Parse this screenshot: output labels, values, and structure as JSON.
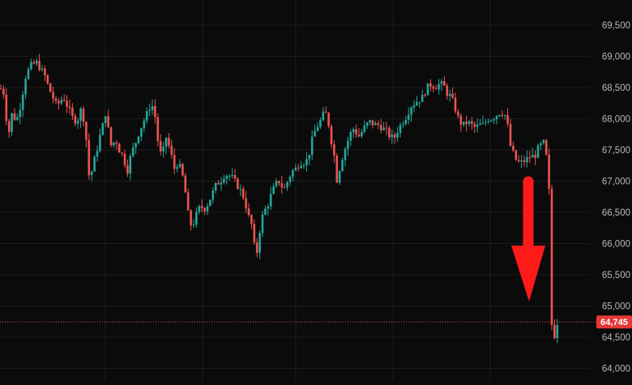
{
  "chart_data": {
    "type": "candlestick",
    "title": "",
    "xlabel": "",
    "ylabel": "",
    "ylim": [
      63800,
      69900
    ],
    "y_axis_position": "right",
    "grid": true,
    "y_ticks": [
      "64,000",
      "64,500",
      "65,000",
      "65,500",
      "66,000",
      "66,500",
      "67,000",
      "67,500",
      "68,000",
      "68,500",
      "69,000",
      "69,500"
    ],
    "current_price": 64745,
    "current_price_label": "64,745",
    "colors": {
      "background": "#0b0b0b",
      "grid": "#1e1e1e",
      "up": "#26a69a",
      "down": "#ef5350",
      "price_line": "#ef5350",
      "arrow": "#ff1a1a"
    },
    "annotation": {
      "type": "arrow",
      "direction": "down",
      "color": "#ff1a1a"
    },
    "path_points": [
      [
        0,
        68500
      ],
      [
        5,
        68400
      ],
      [
        10,
        67700
      ],
      [
        15,
        68100
      ],
      [
        20,
        67950
      ],
      [
        25,
        68200
      ],
      [
        32,
        68700
      ],
      [
        38,
        68850
      ],
      [
        45,
        68900
      ],
      [
        50,
        68800
      ],
      [
        55,
        68700
      ],
      [
        60,
        68500
      ],
      [
        65,
        68350
      ],
      [
        70,
        68200
      ],
      [
        78,
        68350
      ],
      [
        85,
        68150
      ],
      [
        90,
        68000
      ],
      [
        95,
        67950
      ],
      [
        100,
        68150
      ],
      [
        105,
        67900
      ],
      [
        108,
        67400
      ],
      [
        111,
        66900
      ],
      [
        114,
        67250
      ],
      [
        118,
        67400
      ],
      [
        123,
        67700
      ],
      [
        127,
        67900
      ],
      [
        130,
        68100
      ],
      [
        134,
        67800
      ],
      [
        138,
        67500
      ],
      [
        142,
        67700
      ],
      [
        147,
        67500
      ],
      [
        152,
        67400
      ],
      [
        157,
        67150
      ],
      [
        162,
        67450
      ],
      [
        167,
        67600
      ],
      [
        172,
        67800
      ],
      [
        177,
        67950
      ],
      [
        182,
        68100
      ],
      [
        187,
        68250
      ],
      [
        192,
        68000
      ],
      [
        196,
        67500
      ],
      [
        200,
        67400
      ],
      [
        205,
        67700
      ],
      [
        210,
        67500
      ],
      [
        215,
        67200
      ],
      [
        220,
        67300
      ],
      [
        225,
        67100
      ],
      [
        229,
        66800
      ],
      [
        233,
        66400
      ],
      [
        237,
        66250
      ],
      [
        242,
        66450
      ],
      [
        247,
        66600
      ],
      [
        252,
        66550
      ],
      [
        257,
        66650
      ],
      [
        262,
        66800
      ],
      [
        267,
        66950
      ],
      [
        272,
        67000
      ],
      [
        277,
        67100
      ],
      [
        282,
        67100
      ],
      [
        287,
        67050
      ],
      [
        292,
        66950
      ],
      [
        297,
        66850
      ],
      [
        302,
        66700
      ],
      [
        306,
        66450
      ],
      [
        310,
        66350
      ],
      [
        313,
        66000
      ],
      [
        317,
        65850
      ],
      [
        321,
        66250
      ],
      [
        325,
        66500
      ],
      [
        330,
        66600
      ],
      [
        335,
        66800
      ],
      [
        340,
        66950
      ],
      [
        345,
        67000
      ],
      [
        350,
        66850
      ],
      [
        355,
        67000
      ],
      [
        360,
        67150
      ],
      [
        365,
        67200
      ],
      [
        370,
        67300
      ],
      [
        375,
        67300
      ],
      [
        380,
        67350
      ],
      [
        385,
        67650
      ],
      [
        390,
        67850
      ],
      [
        395,
        67950
      ],
      [
        400,
        68100
      ],
      [
        404,
        68050
      ],
      [
        408,
        67700
      ],
      [
        412,
        67450
      ],
      [
        416,
        67000
      ],
      [
        420,
        67250
      ],
      [
        424,
        67450
      ],
      [
        428,
        67600
      ],
      [
        432,
        67750
      ],
      [
        437,
        67850
      ],
      [
        442,
        67700
      ],
      [
        447,
        67800
      ],
      [
        452,
        67900
      ],
      [
        457,
        67950
      ],
      [
        462,
        67900
      ],
      [
        467,
        67900
      ],
      [
        472,
        67850
      ],
      [
        477,
        67800
      ],
      [
        482,
        67700
      ],
      [
        487,
        67700
      ],
      [
        492,
        67850
      ],
      [
        497,
        67950
      ],
      [
        502,
        68050
      ],
      [
        507,
        68200
      ],
      [
        512,
        68250
      ],
      [
        517,
        68300
      ],
      [
        522,
        68350
      ],
      [
        527,
        68500
      ],
      [
        532,
        68550
      ],
      [
        537,
        68500
      ],
      [
        542,
        68550
      ],
      [
        547,
        68550
      ],
      [
        552,
        68400
      ],
      [
        557,
        68350
      ],
      [
        562,
        68150
      ],
      [
        567,
        67950
      ],
      [
        572,
        67900
      ],
      [
        577,
        67950
      ],
      [
        582,
        67900
      ],
      [
        587,
        67850
      ],
      [
        592,
        67900
      ],
      [
        597,
        67900
      ],
      [
        602,
        68000
      ],
      [
        607,
        68000
      ],
      [
        612,
        68050
      ],
      [
        617,
        68100
      ],
      [
        622,
        68100
      ],
      [
        626,
        67950
      ],
      [
        629,
        67600
      ],
      [
        632,
        67500
      ],
      [
        636,
        67350
      ],
      [
        640,
        67300
      ],
      [
        645,
        67300
      ],
      [
        650,
        67350
      ],
      [
        655,
        67400
      ],
      [
        660,
        67400
      ],
      [
        665,
        67550
      ],
      [
        670,
        67600
      ],
      [
        673,
        67650
      ],
      [
        676,
        67000
      ],
      [
        679,
        66700
      ],
      [
        681,
        64700
      ],
      [
        684,
        64500
      ],
      [
        686,
        64650
      ],
      [
        688,
        64745
      ]
    ]
  }
}
